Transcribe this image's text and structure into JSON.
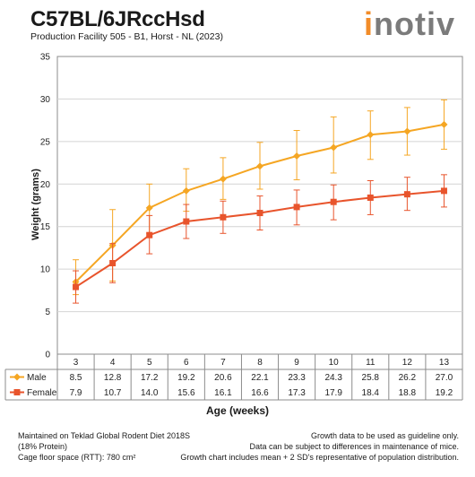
{
  "header": {
    "title": "C57BL/6JRccHsd",
    "subtitle": "Production Facility 505 - B1, Horst - NL (2023)",
    "logo_text": "inotiv"
  },
  "colors": {
    "male": "#f5a623",
    "female": "#e8542c",
    "grid": "#d4d4d4",
    "axis": "#8c8c8c"
  },
  "chart_data": {
    "type": "line",
    "xlabel": "Age (weeks)",
    "ylabel": "Weight (grams)",
    "ylim": [
      0,
      35
    ],
    "yticks": [
      0,
      5,
      10,
      15,
      20,
      25,
      30,
      35
    ],
    "categories": [
      "3",
      "4",
      "5",
      "6",
      "7",
      "8",
      "9",
      "10",
      "11",
      "12",
      "13"
    ],
    "grid": true,
    "legend": "data table below chart",
    "series": [
      {
        "name": "Male",
        "color": "#f5a623",
        "marker": "diamond",
        "values": [
          8.5,
          12.8,
          17.2,
          19.2,
          20.6,
          22.1,
          23.3,
          24.3,
          25.8,
          26.2,
          27.0
        ],
        "value_labels": [
          "8.5",
          "12.8",
          "17.2",
          "19.2",
          "20.6",
          "22.1",
          "23.3",
          "24.3",
          "25.8",
          "26.2",
          "27.0"
        ],
        "err_low": [
          7.0,
          8.6,
          14.2,
          16.8,
          18.2,
          19.4,
          20.5,
          21.3,
          22.9,
          23.4,
          24.1
        ],
        "err_high": [
          11.1,
          17.0,
          20.0,
          21.8,
          23.1,
          24.9,
          26.3,
          27.9,
          28.6,
          29.0,
          29.9
        ]
      },
      {
        "name": "Female",
        "color": "#e8542c",
        "marker": "square",
        "values": [
          7.9,
          10.7,
          14.0,
          15.6,
          16.1,
          16.6,
          17.3,
          17.9,
          18.4,
          18.8,
          19.2
        ],
        "value_labels": [
          "7.9",
          "10.7",
          "14.0",
          "15.6",
          "16.1",
          "16.6",
          "17.3",
          "17.9",
          "18.4",
          "18.8",
          "19.2"
        ],
        "err_low": [
          6.0,
          8.4,
          11.8,
          13.6,
          14.2,
          14.6,
          15.2,
          15.8,
          16.4,
          16.9,
          17.3
        ],
        "err_high": [
          9.8,
          13.0,
          16.3,
          17.6,
          18.0,
          18.6,
          19.3,
          19.9,
          20.4,
          20.8,
          21.1
        ]
      }
    ]
  },
  "footer": {
    "left": [
      "Maintained on Teklad Global Rodent Diet 2018S",
      "(18% Protein)",
      "Cage floor space (RTT): 780 cm²"
    ],
    "right": [
      "Growth data to be used as guideline only.",
      "Data can be subject to differences in maintenance of mice.",
      "Growth chart includes mean + 2 SD's representative of population distribution."
    ]
  }
}
